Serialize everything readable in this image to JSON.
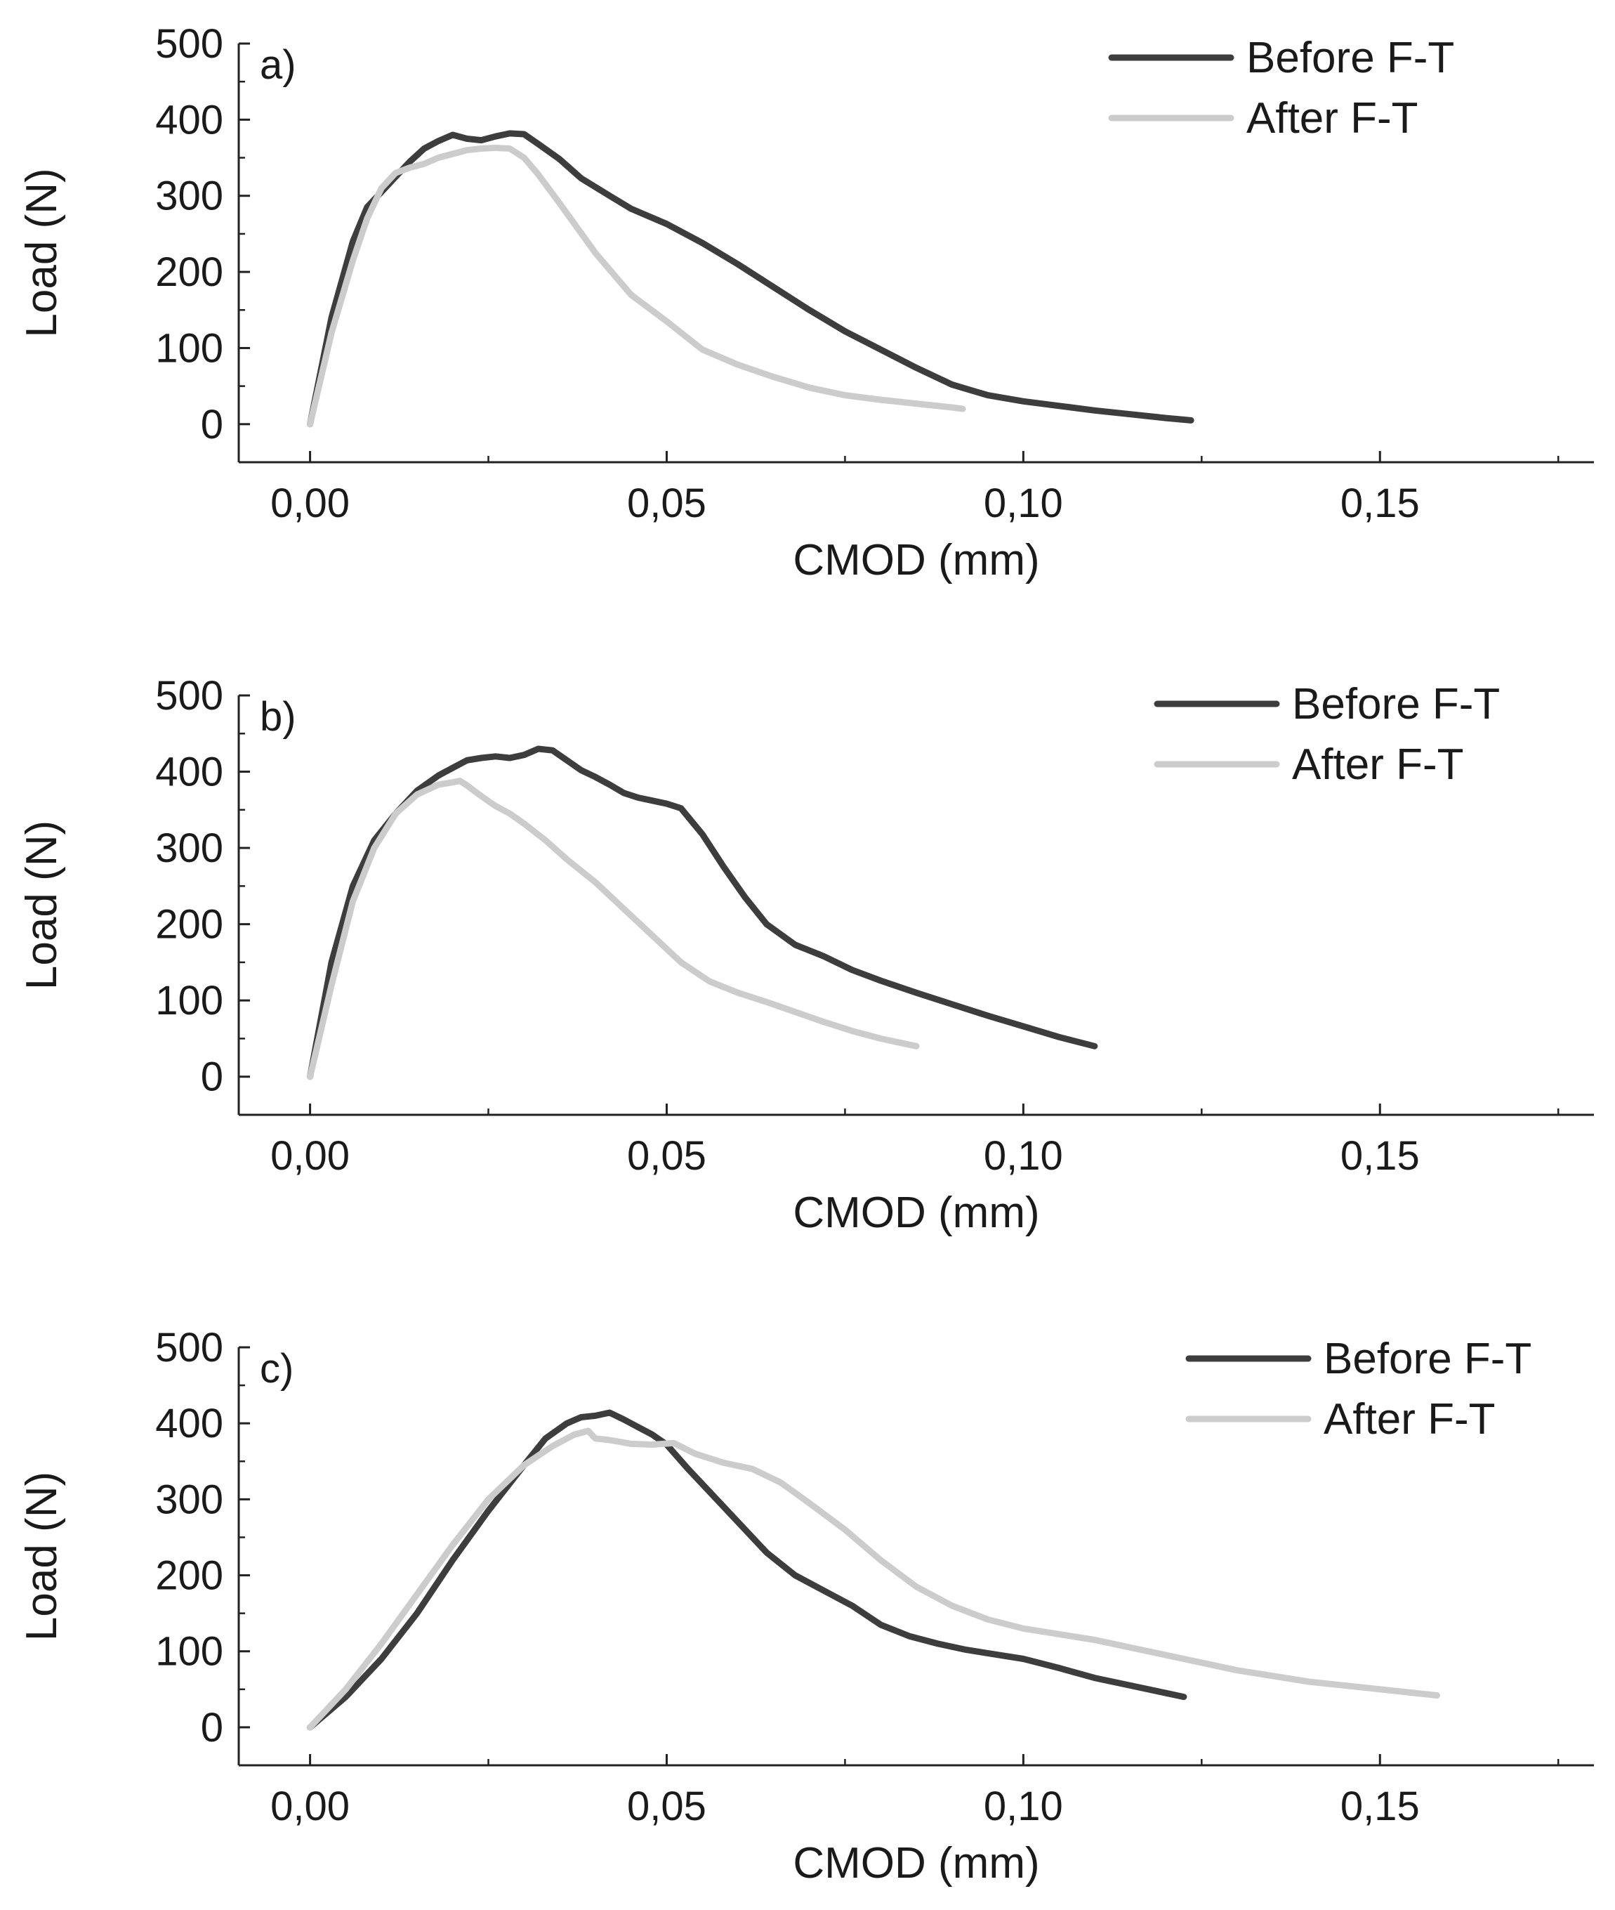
{
  "chart_data": [
    {
      "type": "line",
      "panel_label": "a)",
      "xlabel": "CMOD (mm)",
      "ylabel": "Load (N)",
      "xlim": [
        -0.01,
        0.18
      ],
      "ylim": [
        -50,
        500
      ],
      "xticks": [
        0,
        0.05,
        0.1,
        0.15
      ],
      "xtick_labels": [
        "0,00",
        "0,05",
        "0,10",
        "0,15"
      ],
      "yticks": [
        0,
        100,
        200,
        300,
        400,
        500
      ],
      "ytick_labels": [
        "0",
        "100",
        "200",
        "300",
        "400",
        "500"
      ],
      "legend_position": "top-right",
      "series": [
        {
          "name": "Before F-T",
          "color": "#3d3d3d",
          "x": [
            0,
            0.003,
            0.006,
            0.008,
            0.01,
            0.012,
            0.014,
            0.016,
            0.018,
            0.02,
            0.022,
            0.024,
            0.026,
            0.028,
            0.03,
            0.032,
            0.035,
            0.038,
            0.042,
            0.045,
            0.05,
            0.055,
            0.06,
            0.065,
            0.07,
            0.075,
            0.08,
            0.085,
            0.09,
            0.095,
            0.1,
            0.105,
            0.11,
            0.115,
            0.12,
            0.1235
          ],
          "y": [
            0,
            140,
            240,
            285,
            305,
            325,
            345,
            362,
            372,
            380,
            375,
            373,
            378,
            382,
            381,
            368,
            348,
            323,
            300,
            283,
            263,
            238,
            210,
            180,
            150,
            122,
            98,
            74,
            52,
            38,
            30,
            24,
            18,
            13,
            8,
            5
          ]
        },
        {
          "name": "After F-T",
          "color": "#cccccc",
          "x": [
            0,
            0.003,
            0.006,
            0.008,
            0.01,
            0.012,
            0.014,
            0.016,
            0.018,
            0.02,
            0.022,
            0.024,
            0.026,
            0.028,
            0.03,
            0.032,
            0.035,
            0.04,
            0.045,
            0.05,
            0.055,
            0.06,
            0.065,
            0.07,
            0.075,
            0.08,
            0.085,
            0.09,
            0.0915
          ],
          "y": [
            0,
            120,
            215,
            270,
            310,
            330,
            337,
            342,
            350,
            355,
            360,
            362,
            363,
            362,
            350,
            328,
            290,
            225,
            170,
            135,
            98,
            78,
            62,
            48,
            38,
            32,
            27,
            22,
            20
          ]
        }
      ]
    },
    {
      "type": "line",
      "panel_label": "b)",
      "xlabel": "CMOD (mm)",
      "ylabel": "Load (N)",
      "xlim": [
        -0.01,
        0.18
      ],
      "ylim": [
        -50,
        500
      ],
      "xticks": [
        0,
        0.05,
        0.1,
        0.15
      ],
      "xtick_labels": [
        "0,00",
        "0,05",
        "0,10",
        "0,15"
      ],
      "yticks": [
        0,
        100,
        200,
        300,
        400,
        500
      ],
      "ytick_labels": [
        "0",
        "100",
        "200",
        "300",
        "400",
        "500"
      ],
      "legend_position": "top-right",
      "series": [
        {
          "name": "Before F-T",
          "color": "#3d3d3d",
          "x": [
            0,
            0.003,
            0.006,
            0.009,
            0.012,
            0.015,
            0.018,
            0.02,
            0.022,
            0.024,
            0.026,
            0.028,
            0.03,
            0.032,
            0.034,
            0.036,
            0.038,
            0.04,
            0.042,
            0.044,
            0.046,
            0.048,
            0.05,
            0.052,
            0.055,
            0.058,
            0.061,
            0.064,
            0.068,
            0.072,
            0.076,
            0.08,
            0.085,
            0.09,
            0.095,
            0.1,
            0.105,
            0.11
          ],
          "y": [
            0,
            150,
            250,
            310,
            345,
            375,
            395,
            405,
            415,
            418,
            420,
            418,
            422,
            430,
            428,
            415,
            402,
            393,
            383,
            372,
            366,
            362,
            358,
            352,
            318,
            275,
            235,
            200,
            173,
            158,
            140,
            126,
            110,
            95,
            80,
            66,
            52,
            40
          ]
        },
        {
          "name": "After F-T",
          "color": "#cccccc",
          "x": [
            0,
            0.003,
            0.006,
            0.009,
            0.012,
            0.015,
            0.018,
            0.02,
            0.021,
            0.022,
            0.024,
            0.026,
            0.028,
            0.03,
            0.033,
            0.036,
            0.04,
            0.044,
            0.048,
            0.052,
            0.056,
            0.06,
            0.064,
            0.068,
            0.072,
            0.076,
            0.08,
            0.085
          ],
          "y": [
            0,
            120,
            230,
            300,
            345,
            370,
            383,
            386,
            388,
            382,
            368,
            355,
            345,
            332,
            310,
            285,
            255,
            220,
            185,
            150,
            125,
            110,
            98,
            85,
            72,
            60,
            50,
            40
          ]
        }
      ]
    },
    {
      "type": "line",
      "panel_label": "c)",
      "xlabel": "CMOD (mm)",
      "ylabel": "Load (N)",
      "xlim": [
        -0.01,
        0.18
      ],
      "ylim": [
        -50,
        500
      ],
      "xticks": [
        0,
        0.05,
        0.1,
        0.15
      ],
      "xtick_labels": [
        "0,00",
        "0,05",
        "0,10",
        "0,15"
      ],
      "yticks": [
        0,
        100,
        200,
        300,
        400,
        500
      ],
      "ytick_labels": [
        "0",
        "100",
        "200",
        "300",
        "400",
        "500"
      ],
      "legend_position": "top-right",
      "series": [
        {
          "name": "Before F-T",
          "color": "#3d3d3d",
          "x": [
            0,
            0.005,
            0.01,
            0.015,
            0.02,
            0.025,
            0.03,
            0.033,
            0.036,
            0.038,
            0.04,
            0.042,
            0.044,
            0.046,
            0.048,
            0.05,
            0.053,
            0.056,
            0.06,
            0.064,
            0.068,
            0.072,
            0.076,
            0.08,
            0.084,
            0.088,
            0.092,
            0.096,
            0.1,
            0.105,
            0.11,
            0.115,
            0.12,
            0.1225
          ],
          "y": [
            0,
            40,
            90,
            150,
            220,
            285,
            345,
            380,
            400,
            408,
            410,
            414,
            405,
            395,
            385,
            372,
            340,
            310,
            270,
            230,
            200,
            180,
            160,
            135,
            120,
            110,
            102,
            96,
            90,
            78,
            65,
            55,
            45,
            40
          ]
        },
        {
          "name": "After F-T",
          "color": "#cccccc",
          "x": [
            0,
            0.005,
            0.01,
            0.015,
            0.02,
            0.025,
            0.03,
            0.034,
            0.037,
            0.039,
            0.04,
            0.042,
            0.045,
            0.048,
            0.051,
            0.054,
            0.058,
            0.062,
            0.066,
            0.07,
            0.075,
            0.08,
            0.085,
            0.09,
            0.095,
            0.1,
            0.11,
            0.12,
            0.13,
            0.14,
            0.15,
            0.158
          ],
          "y": [
            0,
            50,
            110,
            175,
            240,
            300,
            345,
            370,
            385,
            390,
            380,
            378,
            373,
            372,
            374,
            360,
            348,
            340,
            322,
            295,
            260,
            220,
            185,
            160,
            142,
            130,
            115,
            95,
            75,
            60,
            50,
            42
          ]
        }
      ]
    }
  ]
}
